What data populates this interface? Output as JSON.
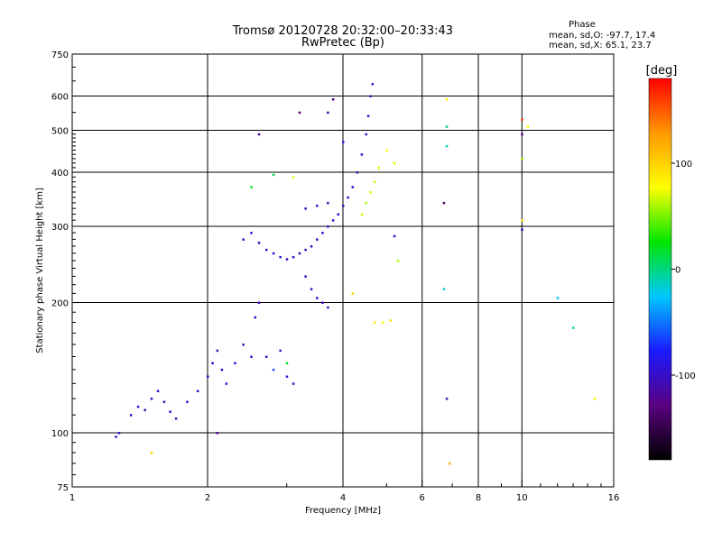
{
  "header": {
    "title": "Tromsø 20120728 20:32:00–20:33:43",
    "subtitle": "RwPretec (Bp)"
  },
  "phase_stats": {
    "heading": "Phase",
    "line_o": "mean, sd,O: -97.7, 17.4",
    "line_x": "mean, sd,X:  65.1, 23.7"
  },
  "colorbar": {
    "unit": "[deg]",
    "ticks": [
      "100",
      "0",
      "-100"
    ],
    "tick_values": [
      100,
      0,
      -100
    ],
    "range": [
      -180,
      180
    ],
    "colors": [
      "#000000",
      "#5a0080",
      "#1a1aff",
      "#00c8ff",
      "#00e600",
      "#ffff00",
      "#ff9900",
      "#ff0000"
    ]
  },
  "chart_data": {
    "type": "scatter",
    "xlabel": "Frequency [MHz]",
    "ylabel": "Stationary phase Virtual Height [km]",
    "xscale": "log",
    "yscale": "log",
    "xlim": [
      1,
      16
    ],
    "ylim": [
      75,
      750
    ],
    "xticks": [
      1,
      2,
      4,
      6,
      8,
      10,
      16
    ],
    "xtick_labels": [
      "1",
      "2",
      "4",
      "6",
      "8",
      "10",
      "16"
    ],
    "yticks": [
      75,
      100,
      200,
      300,
      400,
      500,
      600,
      750
    ],
    "ytick_labels": [
      "75",
      "100",
      "200",
      "300",
      "400",
      "500",
      "600",
      "750"
    ],
    "x_gridlines": [
      2,
      4,
      6,
      8,
      10
    ],
    "y_gridlines": [
      100,
      200,
      300,
      400,
      500,
      600
    ],
    "color_encodes": "phase (deg)",
    "series": [
      {
        "values": [
          [
            1.25,
            98,
            -100
          ],
          [
            1.27,
            100,
            -95
          ],
          [
            1.35,
            110,
            -100
          ],
          [
            1.4,
            115,
            -90
          ],
          [
            1.45,
            113,
            -110
          ],
          [
            1.5,
            120,
            -100
          ],
          [
            1.55,
            125,
            -95
          ],
          [
            1.6,
            118,
            -105
          ],
          [
            1.65,
            112,
            -90
          ],
          [
            1.7,
            108,
            -100
          ],
          [
            1.8,
            118,
            -85
          ],
          [
            1.9,
            125,
            -100
          ],
          [
            2.0,
            135,
            -95
          ],
          [
            2.05,
            145,
            -100
          ],
          [
            2.1,
            155,
            -110
          ],
          [
            2.15,
            140,
            -100
          ],
          [
            2.2,
            130,
            -90
          ],
          [
            2.3,
            145,
            -100
          ],
          [
            2.4,
            160,
            -105
          ],
          [
            2.5,
            150,
            -95
          ],
          [
            2.55,
            185,
            -100
          ],
          [
            2.6,
            200,
            -110
          ],
          [
            2.7,
            150,
            -100
          ],
          [
            2.8,
            140,
            -60
          ],
          [
            2.9,
            155,
            -100
          ],
          [
            3.0,
            135,
            -95
          ],
          [
            3.1,
            130,
            -100
          ],
          [
            2.4,
            280,
            -100
          ],
          [
            2.5,
            290,
            -90
          ],
          [
            2.6,
            275,
            -105
          ],
          [
            2.7,
            265,
            -100
          ],
          [
            2.8,
            260,
            -100
          ],
          [
            2.9,
            255,
            -95
          ],
          [
            3.0,
            252,
            -110
          ],
          [
            3.1,
            255,
            -100
          ],
          [
            3.2,
            260,
            -105
          ],
          [
            3.3,
            265,
            -100
          ],
          [
            3.4,
            270,
            -95
          ],
          [
            3.5,
            280,
            -100
          ],
          [
            3.6,
            290,
            -100
          ],
          [
            3.7,
            300,
            -95
          ],
          [
            3.8,
            310,
            -100
          ],
          [
            3.9,
            320,
            -105
          ],
          [
            4.0,
            335,
            -100
          ],
          [
            4.1,
            350,
            -95
          ],
          [
            4.2,
            370,
            -100
          ],
          [
            4.3,
            400,
            -105
          ],
          [
            4.4,
            440,
            -100
          ],
          [
            4.5,
            490,
            -95
          ],
          [
            4.55,
            540,
            -100
          ],
          [
            4.6,
            600,
            -105
          ],
          [
            4.65,
            640,
            -100
          ],
          [
            3.3,
            230,
            -100
          ],
          [
            3.4,
            215,
            -95
          ],
          [
            3.5,
            205,
            -100
          ],
          [
            3.6,
            200,
            -110
          ],
          [
            3.7,
            195,
            -100
          ],
          [
            3.3,
            330,
            -100
          ],
          [
            3.5,
            335,
            -95
          ],
          [
            3.7,
            340,
            -100
          ],
          [
            3.9,
            320,
            -100
          ],
          [
            4.4,
            320,
            70
          ],
          [
            4.5,
            340,
            60
          ],
          [
            4.6,
            360,
            70
          ],
          [
            4.7,
            380,
            65
          ],
          [
            4.8,
            410,
            70
          ],
          [
            5.0,
            450,
            80
          ],
          [
            5.2,
            420,
            70
          ],
          [
            4.7,
            180,
            90
          ],
          [
            4.9,
            180,
            80
          ],
          [
            5.1,
            182,
            90
          ],
          [
            6.8,
            590,
            80
          ],
          [
            6.9,
            85,
            120
          ],
          [
            6.8,
            510,
            0
          ],
          [
            6.8,
            460,
            -10
          ],
          [
            6.7,
            340,
            -140
          ],
          [
            6.8,
            120,
            -110
          ],
          [
            6.7,
            215,
            -15
          ],
          [
            10,
            530,
            160
          ],
          [
            10,
            490,
            -120
          ],
          [
            10,
            430,
            60
          ],
          [
            10,
            310,
            90
          ],
          [
            10,
            295,
            -100
          ],
          [
            10.3,
            510,
            80
          ],
          [
            12,
            205,
            -30
          ],
          [
            13,
            175,
            -10
          ],
          [
            14.5,
            120,
            85
          ],
          [
            3.2,
            550,
            -130
          ],
          [
            4.0,
            470,
            -90
          ],
          [
            3.8,
            590,
            -120
          ],
          [
            3.7,
            550,
            -110
          ],
          [
            1.5,
            90,
            100
          ],
          [
            2.6,
            490,
            -120
          ],
          [
            2.1,
            100,
            -120
          ],
          [
            4.2,
            210,
            100
          ],
          [
            3.0,
            145,
            20
          ],
          [
            2.5,
            370,
            20
          ],
          [
            2.8,
            395,
            10
          ],
          [
            3.1,
            390,
            70
          ],
          [
            5.2,
            285,
            -100
          ],
          [
            5.3,
            250,
            60
          ]
        ]
      }
    ]
  }
}
